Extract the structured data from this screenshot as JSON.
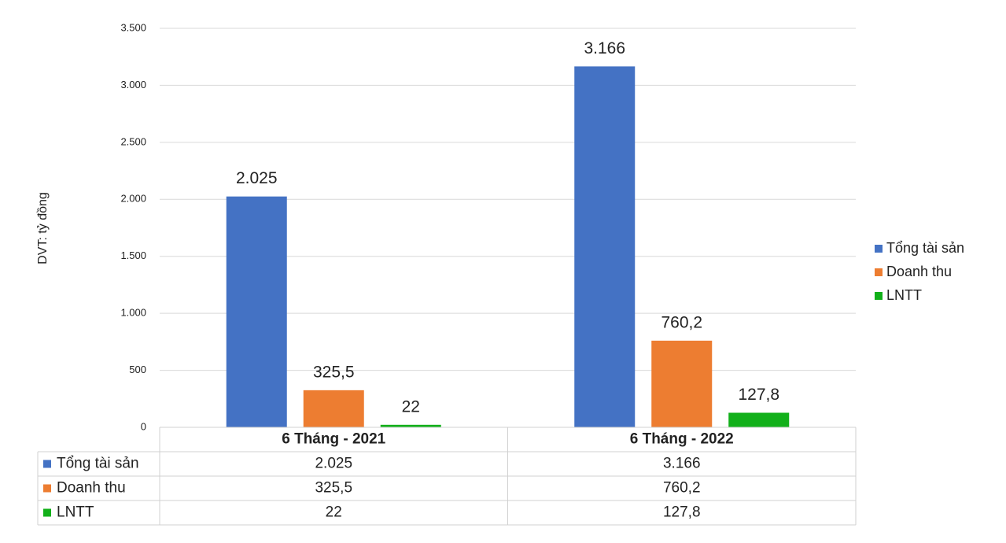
{
  "chart_data": {
    "type": "bar",
    "y_label": "DVT: tỷ đồng",
    "categories": [
      "6 Tháng - 2021",
      "6 Tháng - 2022"
    ],
    "series": [
      {
        "name": "Tổng tài sản",
        "color": "#4472c4",
        "values": [
          2025,
          3166
        ],
        "value_labels": [
          "2.025",
          "3.166"
        ]
      },
      {
        "name": "Doanh thu",
        "color": "#ed7d31",
        "values": [
          325.5,
          760.2
        ],
        "value_labels": [
          "325,5",
          "760,2"
        ]
      },
      {
        "name": "LNTT",
        "color": "#12b01a",
        "values": [
          22,
          127.8
        ],
        "value_labels": [
          "22",
          "127,8"
        ]
      }
    ],
    "ylim": [
      0,
      3500
    ],
    "yticks": [
      0,
      500,
      {
        "value": 1000,
        "label": "1.000"
      },
      {
        "value": 1500,
        "label": "1.500"
      },
      {
        "value": 2000,
        "label": "2.000"
      },
      {
        "value": 2500,
        "label": "2.500"
      },
      {
        "value": 3000,
        "label": "3.000"
      },
      {
        "value": 3500,
        "label": "3.500"
      }
    ],
    "grid": true,
    "legend": "right",
    "data_table": true
  }
}
